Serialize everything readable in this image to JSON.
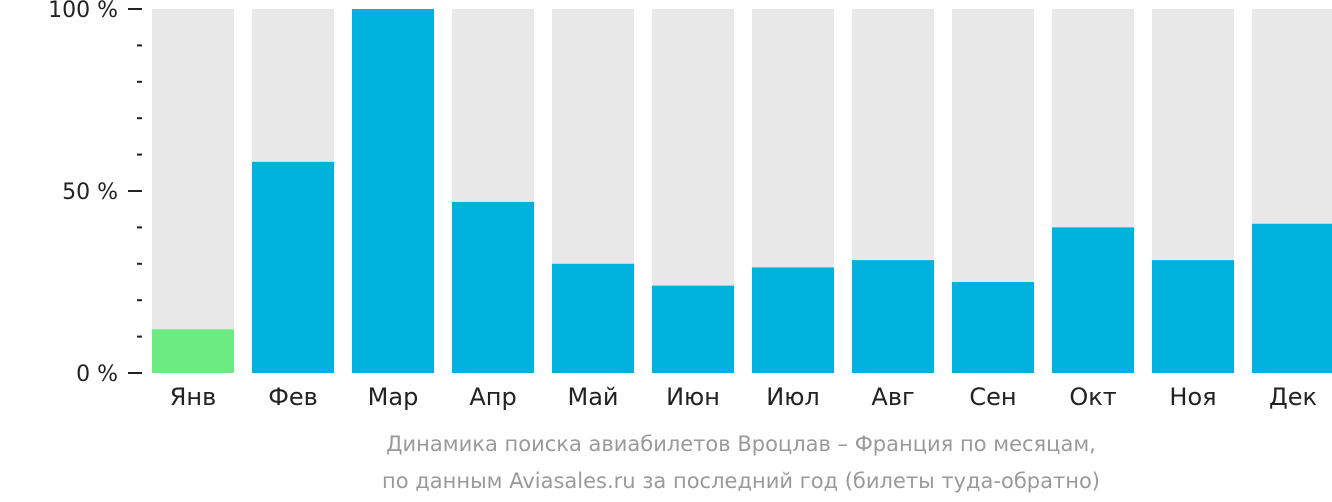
{
  "chart_data": {
    "type": "bar",
    "categories": [
      "Янв",
      "Фев",
      "Мар",
      "Апр",
      "Май",
      "Июн",
      "Июл",
      "Авг",
      "Сен",
      "Окт",
      "Ноя",
      "Дек"
    ],
    "values": [
      12,
      58,
      100,
      47,
      30,
      24,
      29,
      31,
      25,
      40,
      31,
      41
    ],
    "max": 100,
    "ylim": [
      0,
      100
    ],
    "yticks": [
      {
        "value": 100,
        "label": "100 %"
      },
      {
        "value": 50,
        "label": "50 %"
      },
      {
        "value": 0,
        "label": "0 %"
      }
    ],
    "minor_tick_step": 10,
    "highlight_index": 0,
    "colors": {
      "bar": "#00b0dd",
      "highlight": "#6deb83",
      "track": "#e8e8e8",
      "axis": "#222222"
    },
    "caption": [
      "Динамика поиска авиабилетов Вроцлав – Франция по месяцам,",
      "по данным Aviasales.ru за последний год (билеты туда-обратно)"
    ]
  }
}
